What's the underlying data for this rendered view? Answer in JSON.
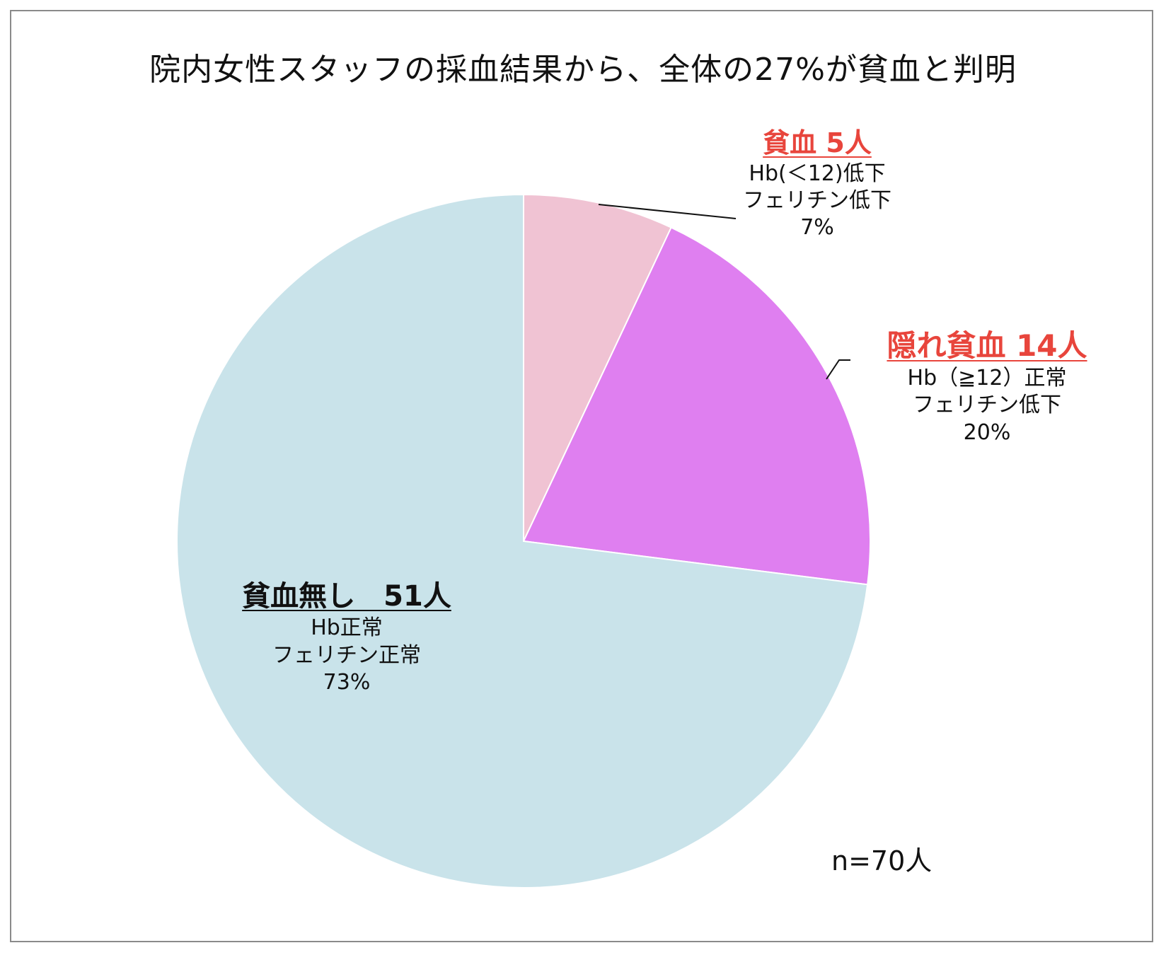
{
  "chart_data": {
    "type": "pie",
    "title": "院内女性スタッフの採血結果から、全体の27%が貧血と判明",
    "slices": [
      {
        "header": "貧血 5人",
        "lines": [
          "Hb(＜12)低下",
          "フェリチン低下"
        ],
        "percent_label": "7%",
        "value": 7,
        "count": 5,
        "color": "#f0c3d3",
        "header_color": "#e8453c"
      },
      {
        "header": "隠れ貧血 14人",
        "lines": [
          "Hb（≧12）正常",
          "フェリチン低下"
        ],
        "percent_label": "20%",
        "value": 20,
        "count": 14,
        "color": "#df7ff0",
        "header_color": "#e8453c"
      },
      {
        "header": "貧血無し　51人",
        "lines": [
          "Hb正常",
          "フェリチン正常"
        ],
        "percent_label": "73%",
        "value": 73,
        "count": 51,
        "color": "#c9e3ea",
        "header_color": "#111111"
      }
    ],
    "note": "n=70人"
  }
}
